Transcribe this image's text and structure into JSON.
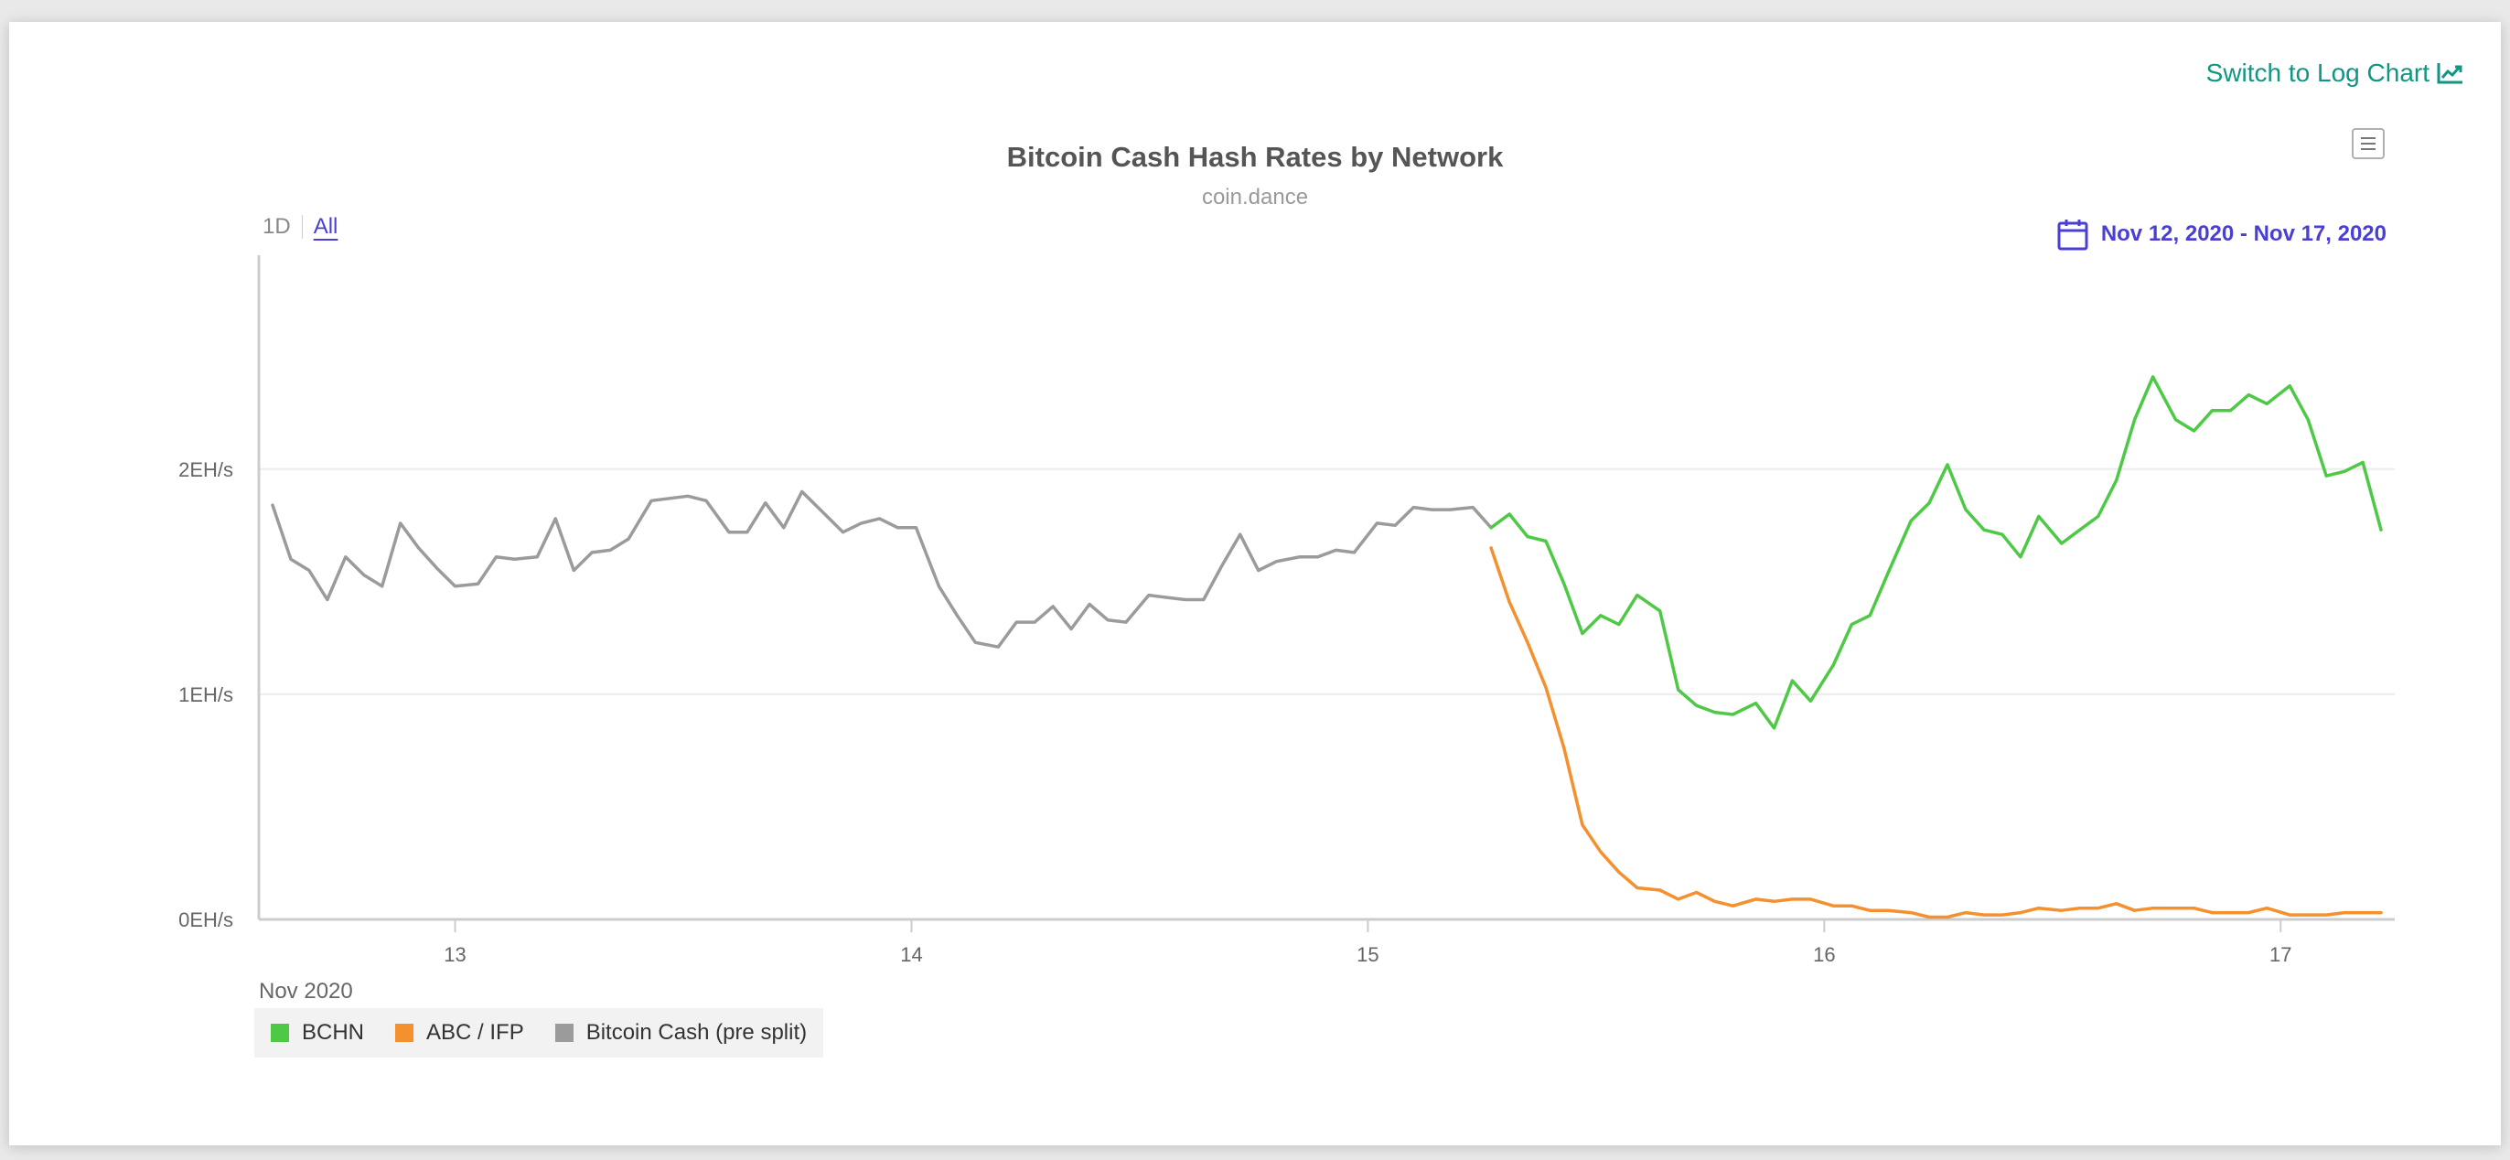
{
  "toolbar": {
    "log_toggle_label": "Switch to Log Chart",
    "log_toggle_icon": "line-chart-icon"
  },
  "range_selector": {
    "buttons": [
      "1D",
      "All"
    ],
    "active": "All"
  },
  "date_range": {
    "label": "Nov 12, 2020 - Nov 17, 2020",
    "icon": "calendar-icon"
  },
  "colors": {
    "accent": "#4a3fd3",
    "link": "#119683",
    "bchn": "#4dc945",
    "abc": "#f4902d",
    "pre_split": "#9b9b9b"
  },
  "chart_data": {
    "type": "line",
    "title": "Bitcoin Cash Hash Rates by Network",
    "subtitle": "coin.dance",
    "x_axis": {
      "unit": "days (Nov 2020)",
      "label": "Nov 2020",
      "ticks": [
        "13",
        "14",
        "15",
        "16",
        "17"
      ],
      "tick_values": [
        13,
        14,
        15,
        16,
        17
      ],
      "range": [
        12.57,
        17.25
      ]
    },
    "y_axis": {
      "unit": "EH/s",
      "ticks": [
        "0EH/s",
        "1EH/s",
        "2EH/s"
      ],
      "tick_values": [
        0,
        1,
        2
      ],
      "range": [
        0,
        2.95
      ],
      "grid": true
    },
    "legend": {
      "position": "bottom-left",
      "entries": [
        "BCHN",
        "ABC / IFP",
        "Bitcoin Cash (pre split)"
      ]
    },
    "series": [
      {
        "name": "Bitcoin Cash (pre split)",
        "color": "#9b9b9b",
        "points": [
          [
            12.6,
            1.84
          ],
          [
            12.64,
            1.6
          ],
          [
            12.68,
            1.55
          ],
          [
            12.72,
            1.42
          ],
          [
            12.76,
            1.61
          ],
          [
            12.8,
            1.53
          ],
          [
            12.84,
            1.48
          ],
          [
            12.88,
            1.76
          ],
          [
            12.92,
            1.65
          ],
          [
            12.96,
            1.56
          ],
          [
            13.0,
            1.48
          ],
          [
            13.05,
            1.49
          ],
          [
            13.09,
            1.61
          ],
          [
            13.13,
            1.6
          ],
          [
            13.18,
            1.61
          ],
          [
            13.22,
            1.78
          ],
          [
            13.26,
            1.55
          ],
          [
            13.3,
            1.63
          ],
          [
            13.34,
            1.64
          ],
          [
            13.38,
            1.69
          ],
          [
            13.43,
            1.86
          ],
          [
            13.47,
            1.87
          ],
          [
            13.51,
            1.88
          ],
          [
            13.55,
            1.86
          ],
          [
            13.6,
            1.72
          ],
          [
            13.64,
            1.72
          ],
          [
            13.68,
            1.85
          ],
          [
            13.72,
            1.74
          ],
          [
            13.76,
            1.9
          ],
          [
            13.8,
            1.82
          ],
          [
            13.85,
            1.72
          ],
          [
            13.89,
            1.76
          ],
          [
            13.93,
            1.78
          ],
          [
            13.97,
            1.74
          ],
          [
            14.01,
            1.74
          ],
          [
            14.06,
            1.48
          ],
          [
            14.1,
            1.35
          ],
          [
            14.14,
            1.23
          ],
          [
            14.19,
            1.21
          ],
          [
            14.23,
            1.32
          ],
          [
            14.27,
            1.32
          ],
          [
            14.31,
            1.39
          ],
          [
            14.35,
            1.29
          ],
          [
            14.39,
            1.4
          ],
          [
            14.43,
            1.33
          ],
          [
            14.47,
            1.32
          ],
          [
            14.52,
            1.44
          ],
          [
            14.56,
            1.43
          ],
          [
            14.6,
            1.42
          ],
          [
            14.64,
            1.42
          ],
          [
            14.68,
            1.57
          ],
          [
            14.72,
            1.71
          ],
          [
            14.76,
            1.55
          ],
          [
            14.8,
            1.59
          ],
          [
            14.85,
            1.61
          ],
          [
            14.89,
            1.61
          ],
          [
            14.93,
            1.64
          ],
          [
            14.97,
            1.63
          ],
          [
            15.02,
            1.76
          ],
          [
            15.06,
            1.75
          ],
          [
            15.1,
            1.83
          ],
          [
            15.14,
            1.82
          ],
          [
            15.18,
            1.82
          ],
          [
            15.23,
            1.83
          ],
          [
            15.27,
            1.74
          ]
        ]
      },
      {
        "name": "BCHN",
        "color": "#4dc945",
        "points": [
          [
            15.27,
            1.74
          ],
          [
            15.31,
            1.8
          ],
          [
            15.35,
            1.7
          ],
          [
            15.39,
            1.68
          ],
          [
            15.43,
            1.49
          ],
          [
            15.47,
            1.27
          ],
          [
            15.51,
            1.35
          ],
          [
            15.55,
            1.31
          ],
          [
            15.59,
            1.44
          ],
          [
            15.64,
            1.37
          ],
          [
            15.68,
            1.02
          ],
          [
            15.72,
            0.95
          ],
          [
            15.76,
            0.92
          ],
          [
            15.8,
            0.91
          ],
          [
            15.85,
            0.96
          ],
          [
            15.89,
            0.85
          ],
          [
            15.93,
            1.06
          ],
          [
            15.97,
            0.97
          ],
          [
            16.02,
            1.13
          ],
          [
            16.06,
            1.31
          ],
          [
            16.1,
            1.35
          ],
          [
            16.14,
            1.54
          ],
          [
            16.19,
            1.77
          ],
          [
            16.23,
            1.85
          ],
          [
            16.27,
            2.02
          ],
          [
            16.31,
            1.82
          ],
          [
            16.35,
            1.73
          ],
          [
            16.39,
            1.71
          ],
          [
            16.43,
            1.61
          ],
          [
            16.47,
            1.79
          ],
          [
            16.52,
            1.67
          ],
          [
            16.56,
            1.73
          ],
          [
            16.6,
            1.79
          ],
          [
            16.64,
            1.95
          ],
          [
            16.68,
            2.22
          ],
          [
            16.72,
            2.41
          ],
          [
            16.77,
            2.22
          ],
          [
            16.81,
            2.17
          ],
          [
            16.85,
            2.26
          ],
          [
            16.89,
            2.26
          ],
          [
            16.93,
            2.33
          ],
          [
            16.97,
            2.29
          ],
          [
            17.02,
            2.37
          ],
          [
            17.06,
            2.22
          ],
          [
            17.1,
            1.97
          ],
          [
            17.14,
            1.99
          ],
          [
            17.18,
            2.03
          ],
          [
            17.22,
            1.73
          ]
        ]
      },
      {
        "name": "ABC / IFP",
        "color": "#f4902d",
        "points": [
          [
            15.27,
            1.65
          ],
          [
            15.31,
            1.41
          ],
          [
            15.35,
            1.23
          ],
          [
            15.39,
            1.03
          ],
          [
            15.43,
            0.76
          ],
          [
            15.47,
            0.42
          ],
          [
            15.51,
            0.3
          ],
          [
            15.55,
            0.21
          ],
          [
            15.59,
            0.14
          ],
          [
            15.64,
            0.13
          ],
          [
            15.68,
            0.09
          ],
          [
            15.72,
            0.12
          ],
          [
            15.76,
            0.08
          ],
          [
            15.8,
            0.06
          ],
          [
            15.85,
            0.09
          ],
          [
            15.89,
            0.08
          ],
          [
            15.93,
            0.09
          ],
          [
            15.97,
            0.09
          ],
          [
            16.02,
            0.06
          ],
          [
            16.06,
            0.06
          ],
          [
            16.1,
            0.04
          ],
          [
            16.14,
            0.04
          ],
          [
            16.19,
            0.03
          ],
          [
            16.23,
            0.01
          ],
          [
            16.27,
            0.01
          ],
          [
            16.31,
            0.03
          ],
          [
            16.35,
            0.02
          ],
          [
            16.39,
            0.02
          ],
          [
            16.43,
            0.03
          ],
          [
            16.47,
            0.05
          ],
          [
            16.52,
            0.04
          ],
          [
            16.56,
            0.05
          ],
          [
            16.6,
            0.05
          ],
          [
            16.64,
            0.07
          ],
          [
            16.68,
            0.04
          ],
          [
            16.72,
            0.05
          ],
          [
            16.77,
            0.05
          ],
          [
            16.81,
            0.05
          ],
          [
            16.85,
            0.03
          ],
          [
            16.89,
            0.03
          ],
          [
            16.93,
            0.03
          ],
          [
            16.97,
            0.05
          ],
          [
            17.02,
            0.02
          ],
          [
            17.06,
            0.02
          ],
          [
            17.1,
            0.02
          ],
          [
            17.14,
            0.03
          ],
          [
            17.18,
            0.03
          ],
          [
            17.22,
            0.03
          ]
        ]
      }
    ]
  }
}
